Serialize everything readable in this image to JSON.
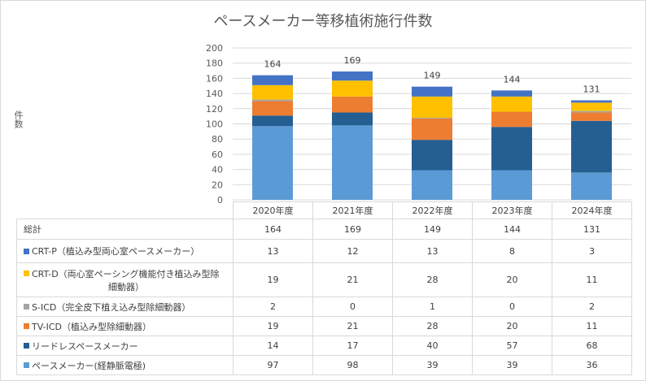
{
  "chart_data": {
    "type": "bar",
    "stacked": true,
    "title": "ペースメーカー等移植術施行件数",
    "ylabel": "件数",
    "xlabel": "",
    "ylim": [
      0,
      200
    ],
    "yticks": [
      0,
      20,
      40,
      60,
      80,
      100,
      120,
      140,
      160,
      180,
      200
    ],
    "grid": true,
    "legend": "data-table",
    "categories": [
      "2020年度",
      "2021年度",
      "2022年度",
      "2023年度",
      "2024年度"
    ],
    "totals_label": "総計",
    "totals": [
      164,
      169,
      149,
      144,
      131
    ],
    "series": [
      {
        "name": "ペースメーカー(経静脈電極)",
        "color": "#5b9bd5",
        "values": [
          97,
          98,
          39,
          39,
          36
        ]
      },
      {
        "name": "リードレスペースメーカー",
        "color": "#255e91",
        "values": [
          14,
          17,
          40,
          57,
          68
        ]
      },
      {
        "name": "TV-ICD（植込み型除細動器）",
        "color": "#ed7d31",
        "values": [
          19,
          21,
          28,
          20,
          11
        ]
      },
      {
        "name": "S-ICD（完全皮下植え込み型除細動器）",
        "color": "#a5a5a5",
        "values": [
          2,
          0,
          1,
          0,
          2
        ]
      },
      {
        "name": "CRT-D（両心室ペーシング機能付き植込み型除",
        "name_cont": "細動器）",
        "color": "#ffc000",
        "values": [
          19,
          21,
          28,
          20,
          11
        ]
      },
      {
        "name": "CRT-P（植込み型両心室ペースメーカー）",
        "color": "#4472c4",
        "values": [
          13,
          12,
          13,
          8,
          3
        ]
      }
    ]
  }
}
